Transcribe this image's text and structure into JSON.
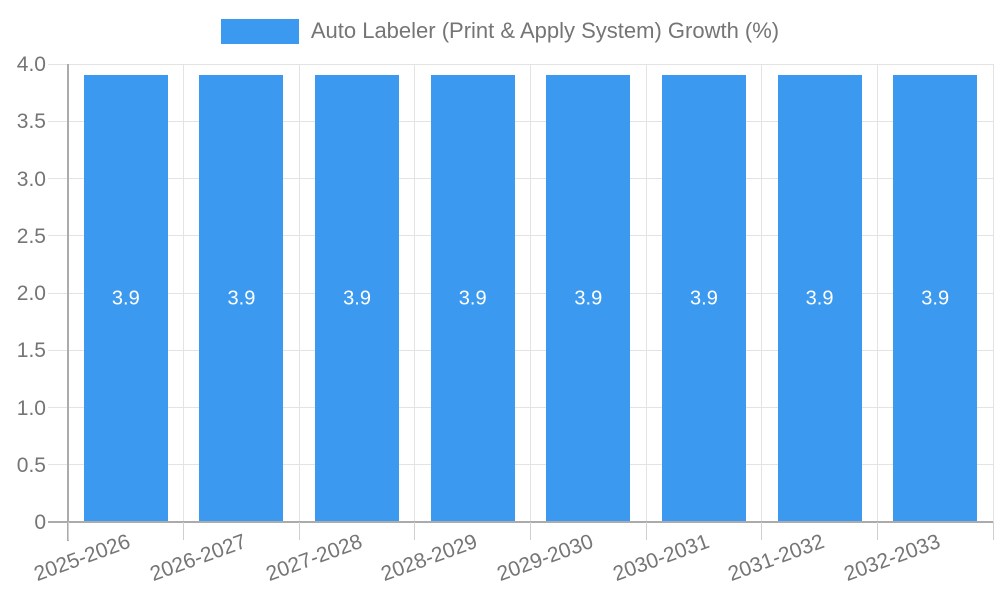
{
  "legend": {
    "label": "Auto Labeler (Print & Apply System) Growth (%)"
  },
  "chart_data": {
    "type": "bar",
    "title": "Auto Labeler (Print & Apply System) Growth (%)",
    "series_name": "Auto Labeler (Print & Apply System) Growth (%)",
    "categories": [
      "2025-2026",
      "2026-2027",
      "2027-2028",
      "2028-2029",
      "2029-2030",
      "2030-2031",
      "2031-2032",
      "2032-2033"
    ],
    "values": [
      3.9,
      3.9,
      3.9,
      3.9,
      3.9,
      3.9,
      3.9,
      3.9
    ],
    "value_labels": [
      "3.9",
      "3.9",
      "3.9",
      "3.9",
      "3.9",
      "3.9",
      "3.9",
      "3.9"
    ],
    "xlabel": "",
    "ylabel": "",
    "ylim": [
      0,
      4
    ],
    "yticks": [
      {
        "value": 0,
        "label": "0"
      },
      {
        "value": 0.5,
        "label": "0.5"
      },
      {
        "value": 1.0,
        "label": "1.0"
      },
      {
        "value": 1.5,
        "label": "1.5"
      },
      {
        "value": 2.0,
        "label": "2.0"
      },
      {
        "value": 2.5,
        "label": "2.5"
      },
      {
        "value": 3.0,
        "label": "3.0"
      },
      {
        "value": 3.5,
        "label": "3.5"
      },
      {
        "value": 4.0,
        "label": "4.0"
      }
    ],
    "grid": true,
    "legend_position": "top",
    "colors": {
      "bar": "#3c99f0",
      "bar_value_text": "#ffffff",
      "gridline": "#e3e3e3",
      "axis_line": "#ababab",
      "tick_text": "#757575",
      "legend_text": "#757575"
    }
  }
}
